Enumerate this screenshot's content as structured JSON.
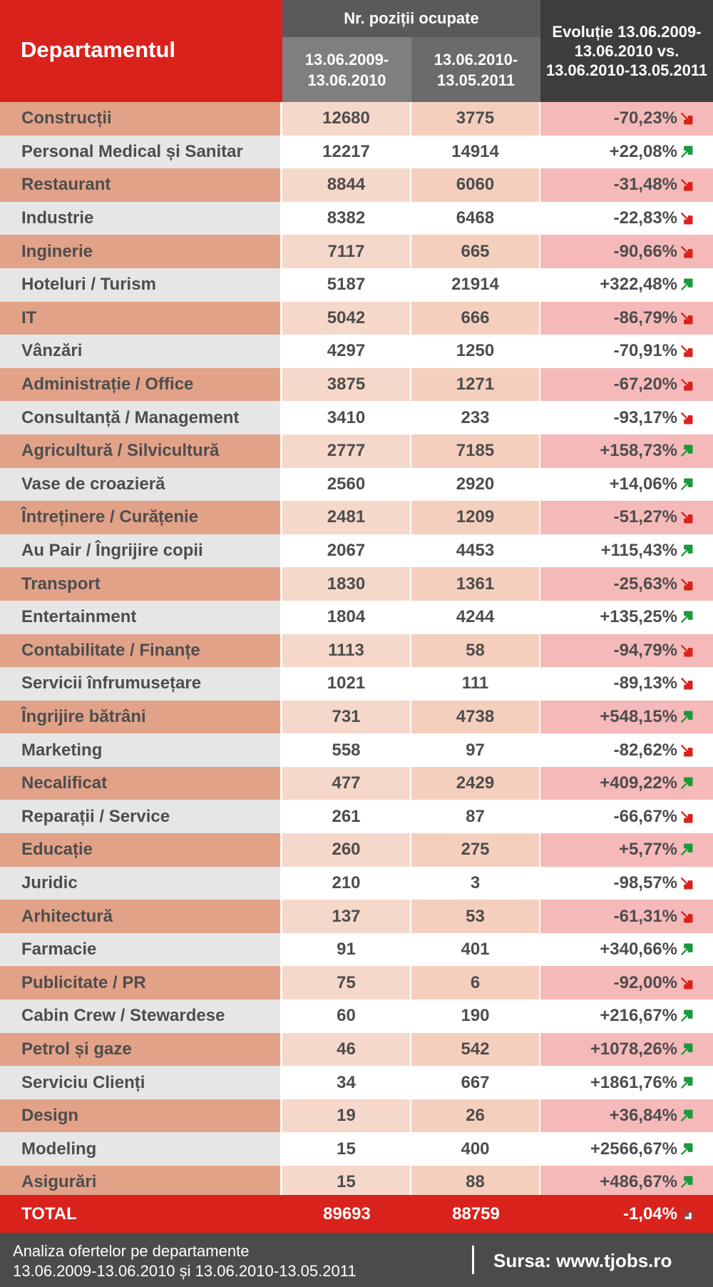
{
  "chart_data": {
    "type": "table",
    "header": {
      "department": "Departamentul",
      "group": "Nr. poziții ocupate",
      "period1": [
        "13.06.2009-",
        "13.06.2010"
      ],
      "period2": [
        "13.06.2010-",
        "13.05.2011"
      ],
      "evolution": [
        "Evoluție 13.06.2009-",
        "13.06.2010 vs.",
        "13.06.2010-13.05.2011"
      ]
    },
    "rows": [
      {
        "dept": "Construcții",
        "v1": "12680",
        "v2": "3775",
        "ev": "-70,23%",
        "dir": "down"
      },
      {
        "dept": "Personal Medical și Sanitar",
        "v1": "12217",
        "v2": "14914",
        "ev": "+22,08%",
        "dir": "up"
      },
      {
        "dept": "Restaurant",
        "v1": "8844",
        "v2": "6060",
        "ev": "-31,48%",
        "dir": "down"
      },
      {
        "dept": "Industrie",
        "v1": "8382",
        "v2": "6468",
        "ev": "-22,83%",
        "dir": "down"
      },
      {
        "dept": "Inginerie",
        "v1": "7117",
        "v2": "665",
        "ev": "-90,66%",
        "dir": "down"
      },
      {
        "dept": "Hoteluri / Turism",
        "v1": "5187",
        "v2": "21914",
        "ev": "+322,48%",
        "dir": "up"
      },
      {
        "dept": "IT",
        "v1": "5042",
        "v2": "666",
        "ev": "-86,79%",
        "dir": "down"
      },
      {
        "dept": "Vânzări",
        "v1": "4297",
        "v2": "1250",
        "ev": "-70,91%",
        "dir": "down"
      },
      {
        "dept": "Administrație / Office",
        "v1": "3875",
        "v2": "1271",
        "ev": "-67,20%",
        "dir": "down"
      },
      {
        "dept": "Consultanță / Management",
        "v1": "3410",
        "v2": "233",
        "ev": "-93,17%",
        "dir": "down"
      },
      {
        "dept": "Agricultură / Silvicultură",
        "v1": "2777",
        "v2": "7185",
        "ev": "+158,73%",
        "dir": "up"
      },
      {
        "dept": "Vase de croazieră",
        "v1": "2560",
        "v2": "2920",
        "ev": "+14,06%",
        "dir": "up"
      },
      {
        "dept": "Întreținere / Curățenie",
        "v1": "2481",
        "v2": "1209",
        "ev": "-51,27%",
        "dir": "down"
      },
      {
        "dept": "Au Pair / Îngrijire copii",
        "v1": "2067",
        "v2": "4453",
        "ev": "+115,43%",
        "dir": "up"
      },
      {
        "dept": "Transport",
        "v1": "1830",
        "v2": "1361",
        "ev": "-25,63%",
        "dir": "down"
      },
      {
        "dept": "Entertainment",
        "v1": "1804",
        "v2": "4244",
        "ev": "+135,25%",
        "dir": "up"
      },
      {
        "dept": "Contabilitate / Finanțe",
        "v1": "1113",
        "v2": "58",
        "ev": "-94,79%",
        "dir": "down"
      },
      {
        "dept": "Servicii înfrumusețare",
        "v1": "1021",
        "v2": "111",
        "ev": "-89,13%",
        "dir": "down"
      },
      {
        "dept": "Îngrijire bătrâni",
        "v1": "731",
        "v2": "4738",
        "ev": "+548,15%",
        "dir": "up"
      },
      {
        "dept": "Marketing",
        "v1": "558",
        "v2": "97",
        "ev": "-82,62%",
        "dir": "down"
      },
      {
        "dept": "Necalificat",
        "v1": "477",
        "v2": "2429",
        "ev": "+409,22%",
        "dir": "up"
      },
      {
        "dept": "Reparații / Service",
        "v1": "261",
        "v2": "87",
        "ev": "-66,67%",
        "dir": "down"
      },
      {
        "dept": "Educație",
        "v1": "260",
        "v2": "275",
        "ev": "+5,77%",
        "dir": "up"
      },
      {
        "dept": "Juridic",
        "v1": "210",
        "v2": "3",
        "ev": "-98,57%",
        "dir": "down"
      },
      {
        "dept": "Arhitectură",
        "v1": "137",
        "v2": "53",
        "ev": "-61,31%",
        "dir": "down"
      },
      {
        "dept": "Farmacie",
        "v1": "91",
        "v2": "401",
        "ev": "+340,66%",
        "dir": "up"
      },
      {
        "dept": "Publicitate / PR",
        "v1": "75",
        "v2": "6",
        "ev": "-92,00%",
        "dir": "down"
      },
      {
        "dept": "Cabin Crew / Stewardese",
        "v1": "60",
        "v2": "190",
        "ev": "+216,67%",
        "dir": "up"
      },
      {
        "dept": "Petrol și gaze",
        "v1": "46",
        "v2": "542",
        "ev": "+1078,26%",
        "dir": "up"
      },
      {
        "dept": "Serviciu Clienți",
        "v1": "34",
        "v2": "667",
        "ev": "+1861,76%",
        "dir": "up"
      },
      {
        "dept": "Design",
        "v1": "19",
        "v2": "26",
        "ev": "+36,84%",
        "dir": "up"
      },
      {
        "dept": "Modeling",
        "v1": "15",
        "v2": "400",
        "ev": "+2566,67%",
        "dir": "up"
      },
      {
        "dept": "Asigurări",
        "v1": "15",
        "v2": "88",
        "ev": "+486,67%",
        "dir": "up"
      }
    ],
    "total": {
      "dept": "TOTAL",
      "v1": "89693",
      "v2": "88759",
      "ev": "-1,04%",
      "dir": "down"
    }
  },
  "footer": {
    "caption_line1": "Analiza ofertelor pe departamente",
    "caption_line2": "13.06.2009-13.06.2010 și 13.06.2010-13.05.2011",
    "source": "Sursa: www.tjobs.ro"
  },
  "colors": {
    "red": "#d9221c",
    "arrow_up": "#1a9a3c",
    "arrow_down": "#d9221c",
    "arrow_total": "#ffffff"
  }
}
